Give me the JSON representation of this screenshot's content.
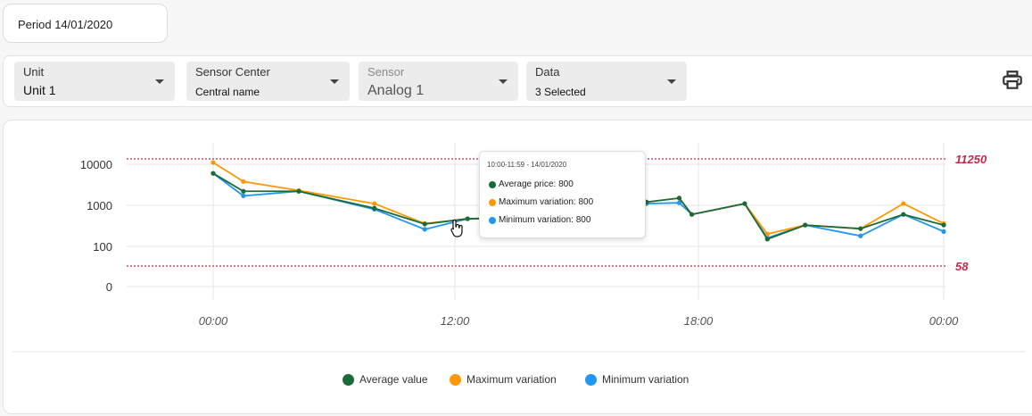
{
  "period": {
    "label": "Period 14/01/2020"
  },
  "filters": {
    "unit": {
      "label": "Unit",
      "value": "Unit 1"
    },
    "sensor_center": {
      "label": "Sensor Center",
      "value": "Central name"
    },
    "sensor": {
      "label": "Sensor",
      "value": "Analog 1"
    },
    "data": {
      "label": "Data",
      "value": "3 Selected"
    }
  },
  "icons": {
    "print": "print-icon",
    "cursor": "hand-pointer-icon"
  },
  "colors": {
    "average": "#1b6b3a",
    "maximum": "#ff9800",
    "minimum": "#2196f3",
    "threshold": "#c62846"
  },
  "tooltip": {
    "title": "10:00-11:59 - 14/01/2020",
    "rows": [
      {
        "label": "Average price: 800"
      },
      {
        "label": "Maximum variation: 800"
      },
      {
        "label": "Minimum variation: 800"
      }
    ]
  },
  "chart_data": {
    "type": "line",
    "y_scale": "log",
    "y_ticks": [
      "10000",
      "1000",
      "100",
      "0"
    ],
    "x_ticks": [
      "00:00",
      "12:00",
      "18:00",
      "00:00"
    ],
    "x_range_hours": [
      0,
      24
    ],
    "thresholds": [
      {
        "label": "11250",
        "value": 11250
      },
      {
        "label": "58",
        "value": 58
      }
    ],
    "x_hours": [
      0,
      1,
      2,
      3.6,
      5,
      6,
      7,
      8,
      9,
      10,
      11.3,
      12,
      13,
      14,
      15,
      16,
      17,
      18,
      19,
      20,
      21,
      22,
      23,
      24
    ],
    "series": [
      {
        "name": "Average value",
        "color": "#1b6b3a",
        "values": [
          6000,
          2200,
          2200,
          850,
          350,
          470,
          480,
          500,
          650,
          900,
          1200,
          1500,
          600,
          1100,
          150,
          330,
          270,
          600,
          330
        ]
      },
      {
        "name": "Maximum variation",
        "color": "#ff9800",
        "values": [
          11000,
          3800,
          2300,
          1100,
          360,
          470,
          480,
          500,
          650,
          900,
          1200,
          1500,
          600,
          1100,
          200,
          330,
          270,
          1100,
          360
        ]
      },
      {
        "name": "Minimum variation",
        "color": "#2196f3",
        "values": [
          6000,
          1700,
          2200,
          800,
          260,
          470,
          480,
          500,
          650,
          900,
          1100,
          1150,
          600,
          1100,
          160,
          330,
          180,
          600,
          230
        ]
      }
    ],
    "series_x": [
      0,
      1.2,
      3.4,
      6.4,
      8.4,
      10.1,
      10.8,
      12.0,
      13.3,
      15.0,
      17.2,
      18.5,
      19.0,
      21.1,
      22.0,
      23.5,
      25.7,
      27.4,
      29.0
    ],
    "legend": [
      "Average value",
      "Maximum variation",
      "Minimum variation"
    ],
    "legend_placement": "bottom-center",
    "grid": true
  }
}
